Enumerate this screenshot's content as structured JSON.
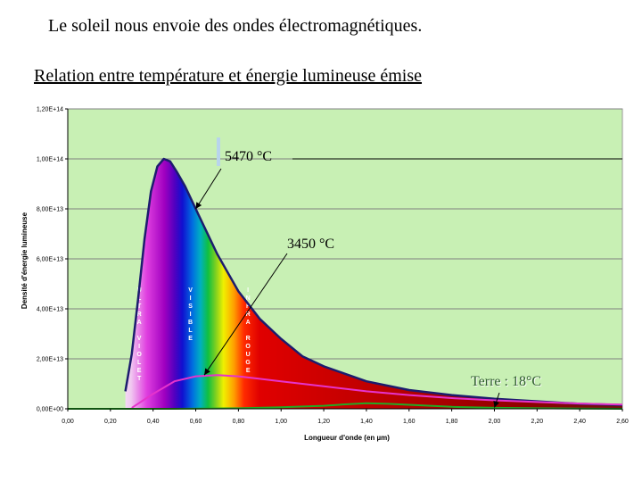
{
  "page": {
    "title": "Le soleil nous envoie des ondes électromagnétiques.",
    "subtitle": "Relation entre température et énergie lumineuse émise"
  },
  "chart_data": {
    "type": "line",
    "xlabel": "Longueur d'onde (en µm)",
    "ylabel": "Densité d'énergie lumineuse",
    "xlim": [
      0,
      2.6
    ],
    "ylim": [
      0,
      1.2
    ],
    "x_ticks": [
      "0,00",
      "0,20",
      "0,40",
      "0,60",
      "0,80",
      "1,00",
      "1,20",
      "1,40",
      "1,60",
      "1,80",
      "2,00",
      "2,20",
      "2,40",
      "2,60"
    ],
    "y_ticks": [
      "0,00E+00",
      "2,00E+13",
      "4,00E+13",
      "6,00E+13",
      "8,00E+13",
      "1,00E+14",
      "1,20E+14"
    ],
    "grid": "horizontal",
    "background_color": "#c8f0b4",
    "series": [
      {
        "name": "5470 °C",
        "color": "#1c1c6e",
        "x": [
          0.27,
          0.3,
          0.33,
          0.36,
          0.39,
          0.42,
          0.45,
          0.48,
          0.51,
          0.55,
          0.6,
          0.65,
          0.7,
          0.8,
          0.9,
          1.0,
          1.1,
          1.2,
          1.4,
          1.6,
          1.8,
          2.0,
          2.2,
          2.4,
          2.6
        ],
        "values": [
          0.07,
          0.22,
          0.44,
          0.68,
          0.87,
          0.97,
          1.0,
          0.99,
          0.95,
          0.89,
          0.8,
          0.71,
          0.62,
          0.47,
          0.36,
          0.28,
          0.21,
          0.17,
          0.11,
          0.075,
          0.055,
          0.04,
          0.03,
          0.02,
          0.015
        ]
      },
      {
        "name": "3450 °C",
        "color": "#e633cc",
        "x": [
          0.3,
          0.4,
          0.5,
          0.6,
          0.7,
          0.8,
          0.9,
          1.0,
          1.2,
          1.4,
          1.6,
          1.8,
          2.0,
          2.2,
          2.4,
          2.6
        ],
        "values": [
          0.004,
          0.06,
          0.11,
          0.13,
          0.135,
          0.13,
          0.12,
          0.11,
          0.09,
          0.07,
          0.055,
          0.043,
          0.034,
          0.027,
          0.021,
          0.017
        ]
      },
      {
        "name": "Terre : 18°C",
        "color": "#22aa22",
        "x": [
          0.0,
          0.5,
          0.8,
          1.0,
          1.2,
          1.3,
          1.4,
          1.5,
          1.6,
          1.7,
          1.8,
          2.0,
          2.2,
          2.4,
          2.6
        ],
        "values": [
          0.0,
          0.0,
          0.002,
          0.006,
          0.012,
          0.018,
          0.022,
          0.02,
          0.016,
          0.012,
          0.008,
          0.004,
          0.002,
          0.001,
          0.0
        ]
      }
    ],
    "region_labels": [
      {
        "text": "ULTRA VIOLET",
        "letters": [
          "U",
          "L",
          "T",
          "R",
          "A",
          "",
          "V",
          "I",
          "O",
          "L",
          "E",
          "T"
        ],
        "x": 0.335,
        "color": "#ffffff"
      },
      {
        "text": "VISIBLE",
        "letters": [
          "V",
          "I",
          "S",
          "I",
          "B",
          "L",
          "E"
        ],
        "x": 0.575,
        "color": "#ffffff"
      },
      {
        "text": "INFRA ROUGE",
        "letters": [
          "I",
          "N",
          "F",
          "R",
          "A",
          "",
          "R",
          "O",
          "U",
          "G",
          "E"
        ],
        "x": 0.845,
        "color": "#ffffff"
      }
    ],
    "annotations": [
      {
        "text": "5470 °C",
        "point_x": 0.6,
        "point_y": 0.8
      },
      {
        "text": "3450 °C",
        "point_x": 0.64,
        "point_y": 0.135
      },
      {
        "text": "Terre : 18°C",
        "point_x": 2.0,
        "point_y": 0.005
      }
    ]
  }
}
